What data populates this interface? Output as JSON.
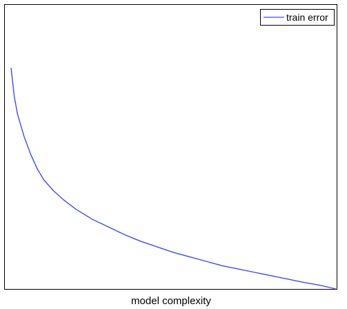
{
  "chart_data": {
    "type": "line",
    "title": "",
    "xlabel": "model complexity",
    "ylabel": "",
    "xlim": [
      0,
      1
    ],
    "ylim": [
      0,
      1
    ],
    "grid": false,
    "legend_position": "top-right",
    "series": [
      {
        "name": "train error",
        "color": "#3a4cff",
        "x": [
          0.0,
          0.01,
          0.02,
          0.04,
          0.06,
          0.08,
          0.1,
          0.13,
          0.16,
          0.2,
          0.25,
          0.3,
          0.35,
          0.4,
          0.45,
          0.5,
          0.55,
          0.6,
          0.65,
          0.7,
          0.75,
          0.8,
          0.85,
          0.9,
          0.95,
          1.0
        ],
        "y": [
          1.0,
          0.87,
          0.79,
          0.69,
          0.61,
          0.545,
          0.495,
          0.445,
          0.405,
          0.36,
          0.315,
          0.28,
          0.245,
          0.215,
          0.19,
          0.165,
          0.145,
          0.125,
          0.105,
          0.09,
          0.075,
          0.06,
          0.045,
          0.03,
          0.017,
          0.0
        ]
      }
    ]
  }
}
